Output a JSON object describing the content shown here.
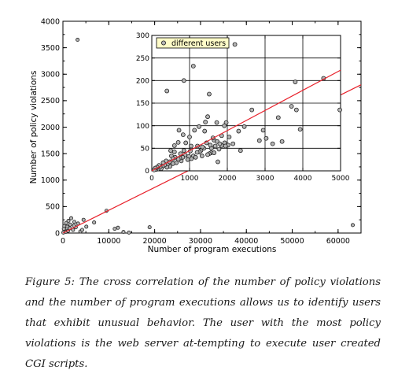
{
  "chart_data": [
    {
      "type": "scatter",
      "xlabel": "Number of program executions",
      "ylabel": "Number of policy violations",
      "xlim": [
        0,
        65000
      ],
      "ylim": [
        0,
        4000
      ],
      "x_ticks": [
        "0",
        "10000",
        "20000",
        "30000",
        "40000",
        "50000",
        "60000"
      ],
      "y_ticks": [
        "0",
        "500",
        "1000",
        "1500",
        "2000",
        "2500",
        "3000",
        "3500",
        "4000"
      ],
      "grid": false,
      "series": [
        {
          "name": "",
          "points": [
            [
              3200,
              3650
            ],
            [
              63200,
              150
            ],
            [
              18900,
              110
            ],
            [
              13200,
              20
            ],
            [
              14400,
              10
            ],
            [
              11300,
              80
            ],
            [
              12000,
              100
            ],
            [
              9500,
              420
            ],
            [
              6800,
              200
            ],
            [
              4500,
              250
            ],
            [
              3300,
              180
            ],
            [
              2500,
              210
            ],
            [
              1200,
              230
            ],
            [
              700,
              190
            ],
            [
              1800,
              280
            ],
            [
              900,
              120
            ],
            [
              1500,
              90
            ],
            [
              2200,
              60
            ],
            [
              400,
              50
            ],
            [
              2800,
              110
            ],
            [
              600,
              20
            ],
            [
              1100,
              40
            ],
            [
              3800,
              30
            ],
            [
              300,
              130
            ],
            [
              5100,
              120
            ],
            [
              4200,
              60
            ],
            [
              1600,
              160
            ],
            [
              2400,
              140
            ],
            [
              200,
              80
            ],
            [
              100,
              10
            ]
          ]
        }
      ],
      "fit_line": {
        "x": [
          0,
          65000
        ],
        "y": [
          0,
          2800
        ]
      }
    },
    {
      "type": "scatter",
      "xlim": [
        0,
        5000
      ],
      "ylim": [
        0,
        300
      ],
      "x_ticks": [
        "0",
        "1000",
        "2000",
        "3000",
        "4000",
        "5000"
      ],
      "y_ticks": [
        "0",
        "50",
        "100",
        "150",
        "200",
        "250",
        "300"
      ],
      "grid": true,
      "legend": {
        "position": "top-left",
        "entries": [
          "different users"
        ]
      },
      "series": [
        {
          "name": "different users",
          "points": [
            [
              2200,
              280
            ],
            [
              1100,
              232
            ],
            [
              850,
              200
            ],
            [
              400,
              177
            ],
            [
              1520,
              170
            ],
            [
              3800,
              197
            ],
            [
              4550,
              205
            ],
            [
              4980,
              135
            ],
            [
              3700,
              143
            ],
            [
              3830,
              135
            ],
            [
              3350,
              118
            ],
            [
              3930,
              92
            ],
            [
              2950,
              90
            ],
            [
              2850,
              67
            ],
            [
              3030,
              72
            ],
            [
              3450,
              65
            ],
            [
              3200,
              60
            ],
            [
              2650,
              135
            ],
            [
              2450,
              98
            ],
            [
              2300,
              88
            ],
            [
              1970,
              107
            ],
            [
              1920,
              100
            ],
            [
              1720,
              107
            ],
            [
              1850,
              78
            ],
            [
              2050,
              75
            ],
            [
              2020,
              57
            ],
            [
              1850,
              56
            ],
            [
              1930,
              62
            ],
            [
              2150,
              60
            ],
            [
              1650,
              68
            ],
            [
              1730,
              65
            ],
            [
              1480,
              120
            ],
            [
              1420,
              108
            ],
            [
              1400,
              88
            ],
            [
              1250,
              98
            ],
            [
              1130,
              90
            ],
            [
              1000,
              75
            ],
            [
              720,
              90
            ],
            [
              900,
              62
            ],
            [
              830,
              80
            ],
            [
              700,
              63
            ],
            [
              600,
              56
            ],
            [
              500,
              45
            ],
            [
              1570,
              40
            ],
            [
              1520,
              38
            ],
            [
              1480,
              36
            ],
            [
              1380,
              50
            ],
            [
              1300,
              45
            ],
            [
              1260,
              42
            ],
            [
              1200,
              41
            ],
            [
              1100,
              33
            ],
            [
              1050,
              27
            ],
            [
              980,
              32
            ],
            [
              950,
              25
            ],
            [
              880,
              35
            ],
            [
              820,
              30
            ],
            [
              780,
              22
            ],
            [
              740,
              28
            ],
            [
              700,
              26
            ],
            [
              650,
              18
            ],
            [
              620,
              30
            ],
            [
              560,
              16
            ],
            [
              520,
              33
            ],
            [
              480,
              10
            ],
            [
              430,
              16
            ],
            [
              400,
              8
            ],
            [
              380,
              22
            ],
            [
              340,
              13
            ],
            [
              300,
              18
            ],
            [
              280,
              10
            ],
            [
              250,
              5
            ],
            [
              220,
              9
            ],
            [
              190,
              12
            ],
            [
              160,
              4
            ],
            [
              140,
              8
            ],
            [
              110,
              3
            ],
            [
              90,
              6
            ],
            [
              60,
              2
            ],
            [
              1750,
              20
            ],
            [
              1340,
              53
            ],
            [
              1580,
              50
            ],
            [
              1650,
              40
            ],
            [
              1680,
              55
            ],
            [
              1800,
              60
            ],
            [
              1950,
              55
            ],
            [
              2350,
              45
            ],
            [
              1450,
              62
            ],
            [
              1550,
              57
            ],
            [
              1620,
              73
            ],
            [
              1780,
              48
            ],
            [
              1020,
              44
            ],
            [
              1160,
              30
            ],
            [
              1210,
              55
            ],
            [
              1330,
              33
            ],
            [
              1040,
              55
            ],
            [
              850,
              45
            ],
            [
              760,
              38
            ],
            [
              560,
              27
            ],
            [
              470,
              20
            ],
            [
              600,
              42
            ]
          ]
        }
      ],
      "fit_line": {
        "x": [
          0,
          5000
        ],
        "y": [
          0,
          223
        ]
      }
    }
  ],
  "caption": "Figure 5: The cross correlation of the number of policy violations and the number of program executions allows us to identify users that exhibit unusual behavior. The user with the most policy violations is the web server at-tempting to execute user created CGI scripts.",
  "colors": {
    "fit_line": "#e8202a",
    "marker_fill": "#b4b4b4",
    "marker_stroke": "#222222",
    "axis": "#000000"
  }
}
